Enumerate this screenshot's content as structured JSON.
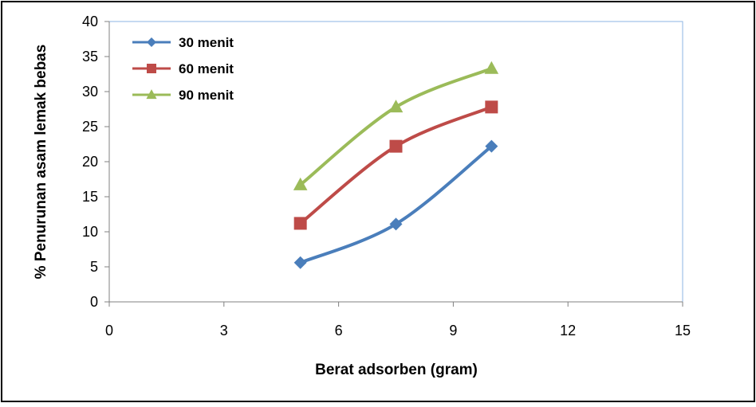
{
  "chart_data": {
    "type": "scatter",
    "title": "",
    "xlabel": "Berat adsorben (gram)",
    "ylabel": "% Penurunan asam lemak bebas",
    "xlim": [
      0,
      15
    ],
    "ylim": [
      0,
      40
    ],
    "xticks": [
      "0",
      "3",
      "6",
      "9",
      "12",
      "15"
    ],
    "yticks": [
      "0",
      "5",
      "10",
      "15",
      "20",
      "25",
      "30",
      "35",
      "40"
    ],
    "grid": false,
    "smooth_lines": true,
    "legend_position": "top-left",
    "series": [
      {
        "name": "30 menit",
        "color": "#4a7ebb",
        "marker": "diamond",
        "x": [
          5,
          7.5,
          10
        ],
        "y": [
          5.6,
          11.1,
          22.2
        ]
      },
      {
        "name": "60 menit",
        "color": "#be4b48",
        "marker": "square",
        "x": [
          5,
          7.5,
          10
        ],
        "y": [
          11.2,
          22.2,
          27.8
        ]
      },
      {
        "name": "90 menit",
        "color": "#9bbb59",
        "marker": "triangle",
        "x": [
          5,
          7.5,
          10
        ],
        "y": [
          16.7,
          27.8,
          33.3
        ]
      }
    ]
  }
}
